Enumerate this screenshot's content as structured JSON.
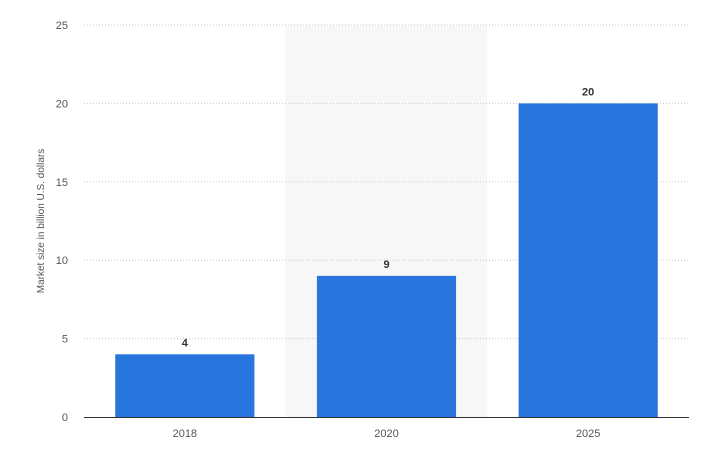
{
  "chart_data": {
    "type": "bar",
    "categories": [
      "2018",
      "2020",
      "2025"
    ],
    "values": [
      4,
      9,
      20
    ],
    "title": "",
    "xlabel": "",
    "ylabel": "Market size in billion U.S. dollars",
    "ylim": [
      0,
      25
    ],
    "yticks": [
      0,
      5,
      10,
      15,
      20,
      25
    ],
    "grid": true,
    "highlighted_category": "2020",
    "colors": {
      "bar": "#2876dd",
      "grid": "#c9c9c9",
      "axis": "#333333",
      "highlight_band": "#f7f7f7"
    }
  }
}
